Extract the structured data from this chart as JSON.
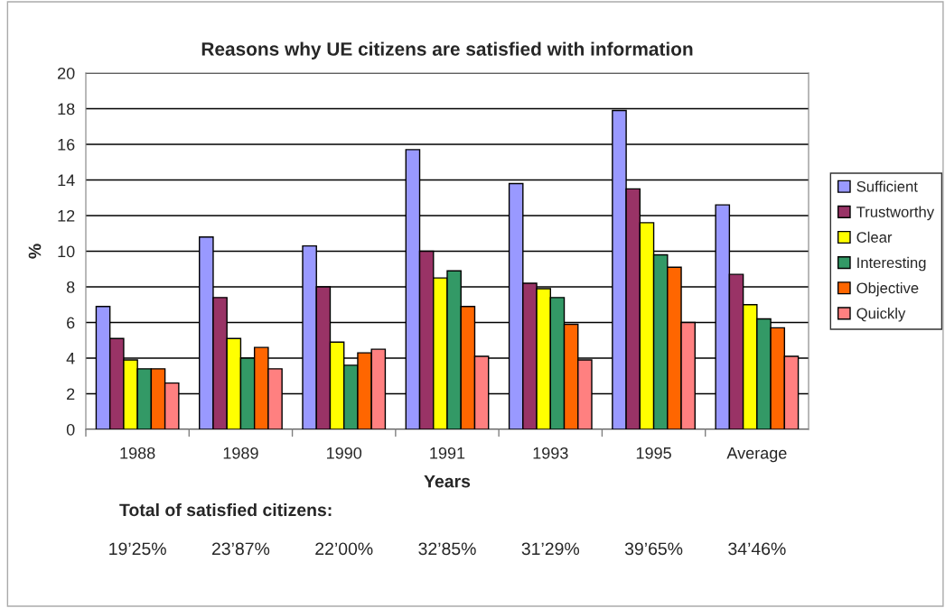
{
  "chart_data": {
    "type": "bar",
    "title": "Reasons why UE citizens are satisfied with information",
    "xlabel": "Years",
    "ylabel": "%",
    "categories": [
      "1988",
      "1989",
      "1990",
      "1991",
      "1993",
      "1995",
      "Average"
    ],
    "series": [
      {
        "name": "Sufficient",
        "color": "#9999ff",
        "values": [
          6.9,
          10.8,
          10.3,
          15.7,
          13.8,
          17.9,
          12.6
        ]
      },
      {
        "name": "Trustworthy",
        "color": "#993366",
        "values": [
          5.1,
          7.4,
          8.0,
          10.0,
          8.2,
          13.5,
          8.7
        ]
      },
      {
        "name": "Clear",
        "color": "#ffff00",
        "values": [
          3.9,
          5.1,
          4.9,
          8.5,
          7.9,
          11.6,
          7.0
        ]
      },
      {
        "name": "Interesting",
        "color": "#339966",
        "values": [
          3.4,
          4.0,
          3.6,
          8.9,
          7.4,
          9.8,
          6.2
        ]
      },
      {
        "name": "Objective",
        "color": "#ff6600",
        "values": [
          3.4,
          4.6,
          4.3,
          6.9,
          5.9,
          9.1,
          5.7
        ]
      },
      {
        "name": "Quickly",
        "color": "#ff8080",
        "values": [
          2.6,
          3.4,
          4.5,
          4.1,
          3.9,
          6.0,
          4.1
        ]
      }
    ],
    "ylim": [
      0,
      20
    ],
    "yticks": [
      0,
      2,
      4,
      6,
      8,
      10,
      12,
      14,
      16,
      18,
      20
    ],
    "grid": "y",
    "legend": "right",
    "annotations": [
      "Total of satisfied citizens:",
      "19’25%",
      "23’87%",
      "22’00%",
      "32’85%",
      "31’29%",
      "39’65%",
      "34’46%"
    ]
  }
}
